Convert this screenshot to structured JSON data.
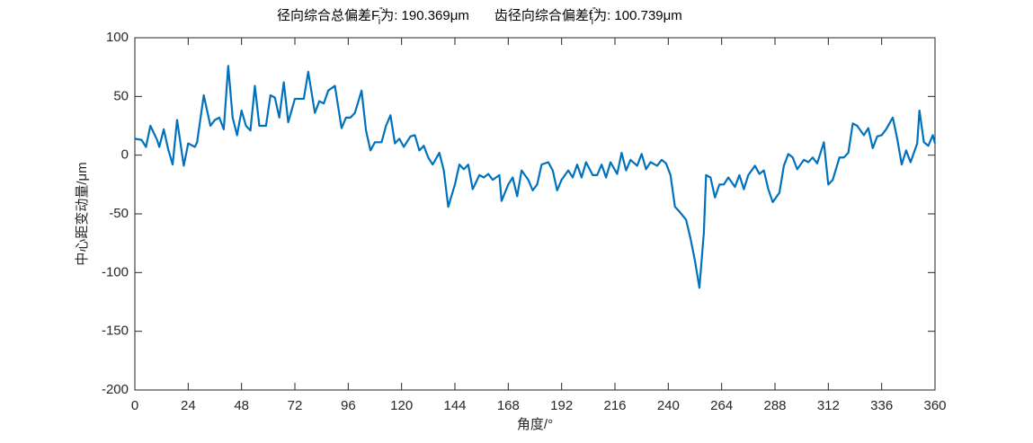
{
  "chart_data": {
    "type": "line",
    "title": [
      {
        "text": "径向综合总偏差F",
        "sup": "\"",
        "sub": "i",
        "after": "为: 190.369μm"
      },
      {
        "text": "齿径向综合偏差f",
        "sup": "\"",
        "sub": "i",
        "after": "为: 100.739μm"
      }
    ],
    "x_label": "角度/°",
    "y_label": "中心距变动量/μm",
    "xlim": [
      0,
      360
    ],
    "xticks": [
      0,
      24,
      48,
      72,
      96,
      120,
      144,
      168,
      192,
      216,
      240,
      264,
      288,
      312,
      336,
      360
    ],
    "ylim": [
      -200,
      100
    ],
    "yticks": [
      -200,
      -150,
      -100,
      -50,
      0,
      50,
      100
    ],
    "grid": false,
    "series": [
      {
        "color": "#0072bd",
        "x": [
          0,
          3,
          5,
          7,
          10,
          11,
          13,
          15,
          17,
          19,
          22,
          24,
          27,
          28,
          31,
          34,
          36,
          38,
          40,
          42,
          44,
          46,
          48,
          50,
          52,
          54,
          56,
          59,
          61,
          63,
          65,
          67,
          69,
          72,
          74,
          76,
          78,
          81,
          83,
          85,
          87,
          90,
          93,
          95,
          97,
          99,
          102,
          104,
          106,
          108,
          111,
          113,
          115,
          117,
          119,
          121,
          124,
          126,
          128,
          130,
          132,
          134,
          137,
          139,
          141,
          144,
          146,
          148,
          150,
          152,
          155,
          157,
          159,
          161,
          164,
          165,
          168,
          170,
          172,
          174,
          177,
          179,
          181,
          183,
          186,
          188,
          190,
          192,
          195,
          197,
          199,
          201,
          203,
          206,
          208,
          210,
          212,
          214,
          217,
          219,
          221,
          223,
          226,
          228,
          230,
          232,
          235,
          237,
          239,
          241,
          243,
          245,
          248,
          250,
          252,
          254,
          256,
          257,
          259,
          261,
          263,
          265,
          267,
          270,
          272,
          274,
          276,
          279,
          281,
          283,
          285,
          287,
          290,
          292,
          294,
          296,
          298,
          301,
          303,
          305,
          307,
          310,
          312,
          314,
          317,
          319,
          321,
          323,
          325,
          328,
          330,
          332,
          334,
          336,
          338,
          341,
          343,
          345,
          347,
          349,
          352,
          353,
          355,
          357,
          359,
          360
        ],
        "values": [
          14,
          13,
          7,
          25,
          13,
          7,
          22,
          5,
          -8,
          30,
          -9,
          10,
          7,
          11,
          51,
          25,
          30,
          32,
          22,
          76,
          32,
          17,
          38,
          25,
          21,
          59,
          25,
          25,
          51,
          49,
          32,
          62,
          28,
          48,
          48,
          48,
          71,
          36,
          46,
          44,
          55,
          59,
          23,
          32,
          32,
          36,
          55,
          21,
          4,
          11,
          11,
          25,
          34,
          10,
          14,
          7,
          16,
          17,
          4,
          8,
          -2,
          -8,
          2,
          -13,
          -44,
          -25,
          -8,
          -12,
          -8,
          -29,
          -17,
          -19,
          -16,
          -21,
          -17,
          -39,
          -25,
          -19,
          -35,
          -13,
          -21,
          -30,
          -25,
          -8,
          -6,
          -13,
          -30,
          -21,
          -13,
          -19,
          -8,
          -19,
          -6,
          -17,
          -17,
          -8,
          -19,
          -6,
          -16,
          2,
          -13,
          -4,
          -9,
          1,
          -12,
          -6,
          -9,
          -4,
          -7,
          -17,
          -44,
          -48,
          -55,
          -71,
          -90,
          -113,
          -66,
          -17,
          -19,
          -36,
          -25,
          -25,
          -19,
          -27,
          -17,
          -29,
          -17,
          -9,
          -16,
          -13,
          -29,
          -40,
          -32,
          -9,
          1,
          -2,
          -12,
          -4,
          -6,
          -2,
          -7,
          11,
          -25,
          -21,
          -2,
          -2,
          2,
          27,
          25,
          17,
          23,
          6,
          16,
          17,
          22,
          32,
          14,
          -8,
          4,
          -6,
          10,
          38,
          11,
          8,
          17,
          10
        ]
      }
    ]
  }
}
